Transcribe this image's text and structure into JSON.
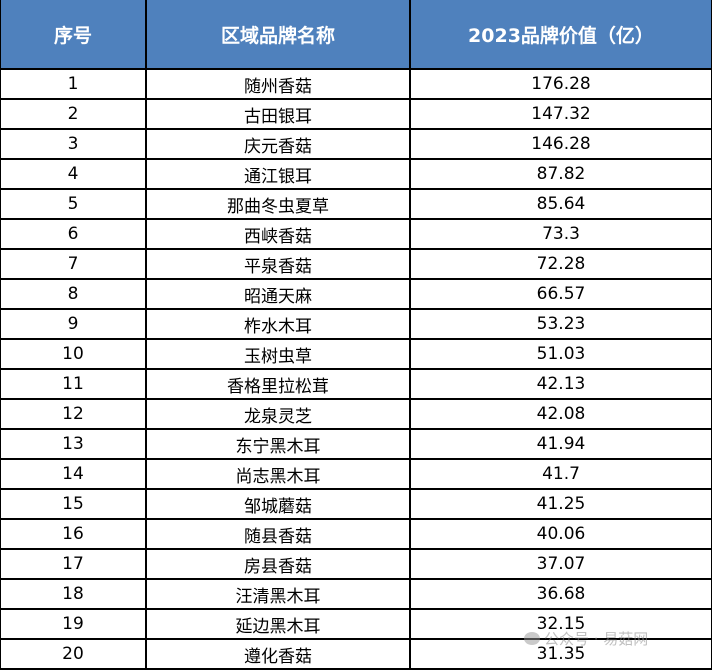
{
  "table": {
    "headers": [
      "序号",
      "区域品牌名称",
      "2023品牌价值（亿）"
    ],
    "rows": [
      [
        "1",
        "随州香菇",
        "176.28"
      ],
      [
        "2",
        "古田银耳",
        "147.32"
      ],
      [
        "3",
        "庆元香菇",
        "146.28"
      ],
      [
        "4",
        "通江银耳",
        "87.82"
      ],
      [
        "5",
        "那曲冬虫夏草",
        "85.64"
      ],
      [
        "6",
        "西峡香菇",
        "73.3"
      ],
      [
        "7",
        "平泉香菇",
        "72.28"
      ],
      [
        "8",
        "昭通天麻",
        "66.57"
      ],
      [
        "9",
        "柞水木耳",
        "53.23"
      ],
      [
        "10",
        "玉树虫草",
        "51.03"
      ],
      [
        "11",
        "香格里拉松茸",
        "42.13"
      ],
      [
        "12",
        "龙泉灵芝",
        "42.08"
      ],
      [
        "13",
        "东宁黑木耳",
        "41.94"
      ],
      [
        "14",
        "尚志黑木耳",
        "41.7"
      ],
      [
        "15",
        "邹城蘑菇",
        "41.25"
      ],
      [
        "16",
        "随县香菇",
        "40.06"
      ],
      [
        "17",
        "房县香菇",
        "37.07"
      ],
      [
        "18",
        "汪清黑木耳",
        "36.68"
      ],
      [
        "19",
        "延边黑木耳",
        "32.15"
      ],
      [
        "20",
        "遵化香菇",
        "31.35"
      ]
    ]
  },
  "watermark": {
    "text": "公众号 · 易菇网",
    "icon": "wechat-icon"
  },
  "colors": {
    "header_bg": "#4f81bd",
    "header_text": "#ffffff"
  }
}
